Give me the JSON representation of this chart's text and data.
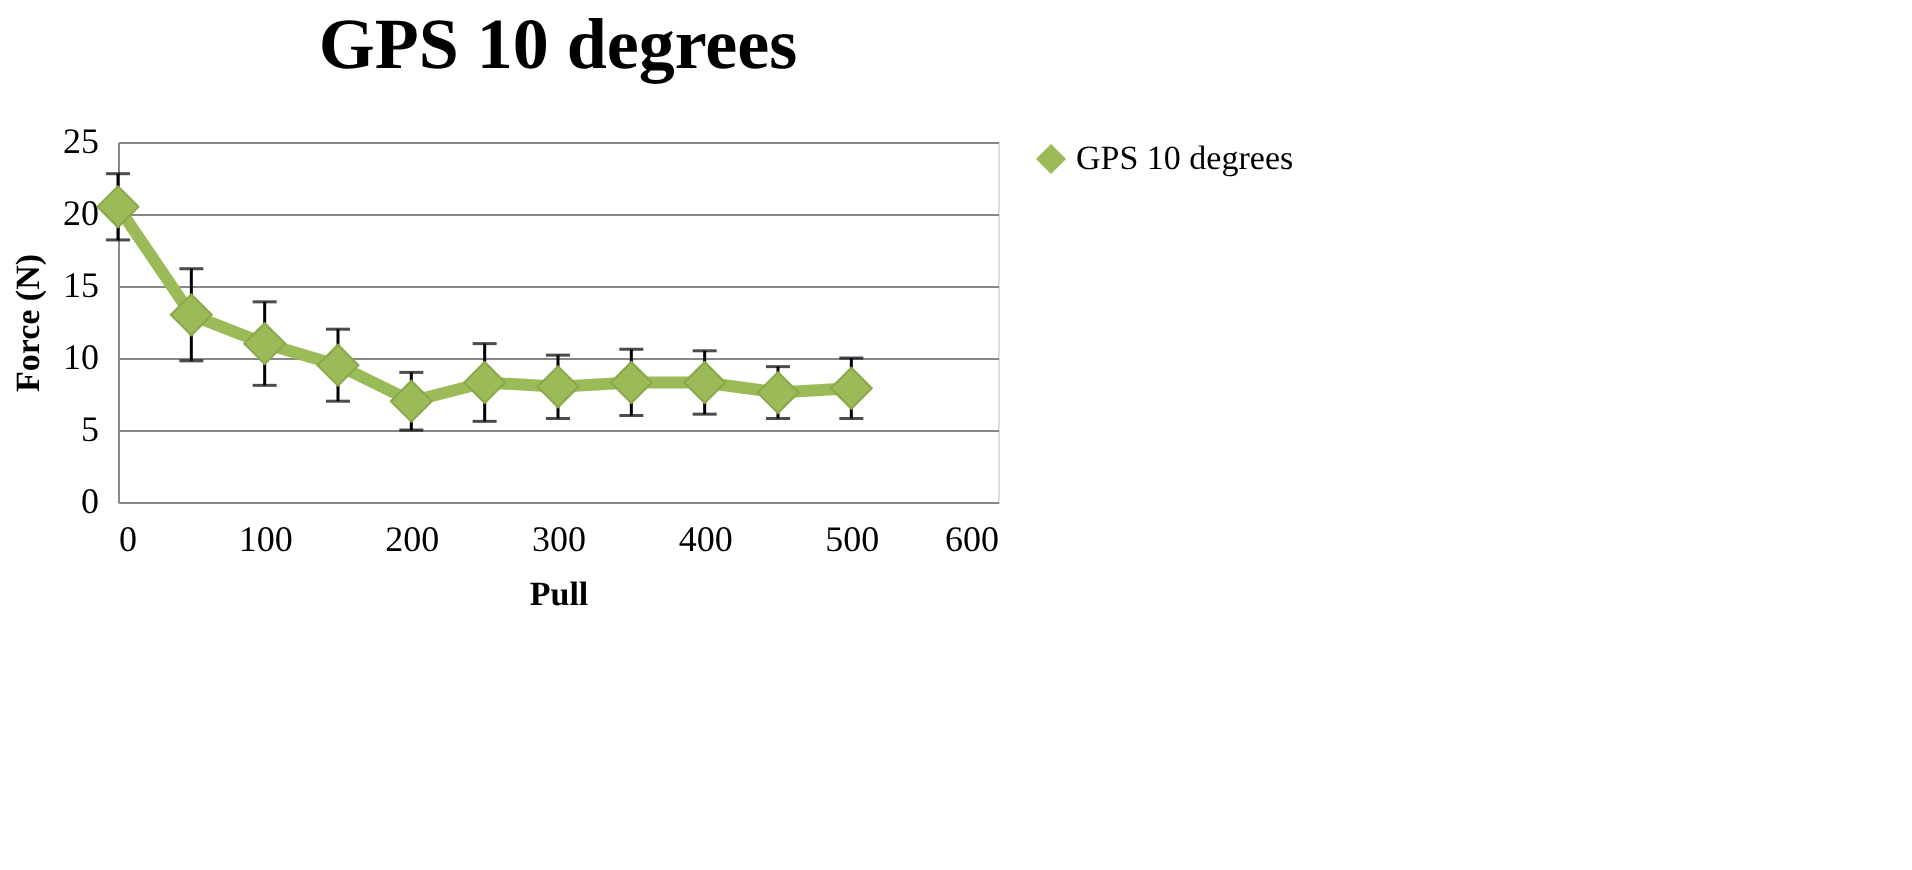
{
  "chart_data": {
    "type": "line",
    "title": "GPS 10 degrees",
    "xlabel": "Pull",
    "ylabel": "Force (N)",
    "x": [
      0,
      50,
      100,
      150,
      200,
      250,
      300,
      350,
      400,
      450,
      500
    ],
    "series": [
      {
        "name": "GPS 10 degrees",
        "color": "#9bbb59",
        "values": [
          20.5,
          13.0,
          11.0,
          9.5,
          7.0,
          8.3,
          8.0,
          8.3,
          8.3,
          7.6,
          7.9
        ],
        "errors": [
          2.3,
          3.2,
          2.9,
          2.5,
          2.0,
          2.7,
          2.2,
          2.3,
          2.2,
          1.8,
          2.1
        ]
      }
    ],
    "xlim": [
      0,
      600
    ],
    "xticks": [
      0,
      100,
      200,
      300,
      400,
      500,
      600
    ],
    "ylim": [
      0,
      25
    ],
    "yticks": [
      0,
      5,
      10,
      15,
      20,
      25
    ],
    "grid": "y",
    "legend": "right",
    "marker": "diamond",
    "line_style": "solid"
  }
}
